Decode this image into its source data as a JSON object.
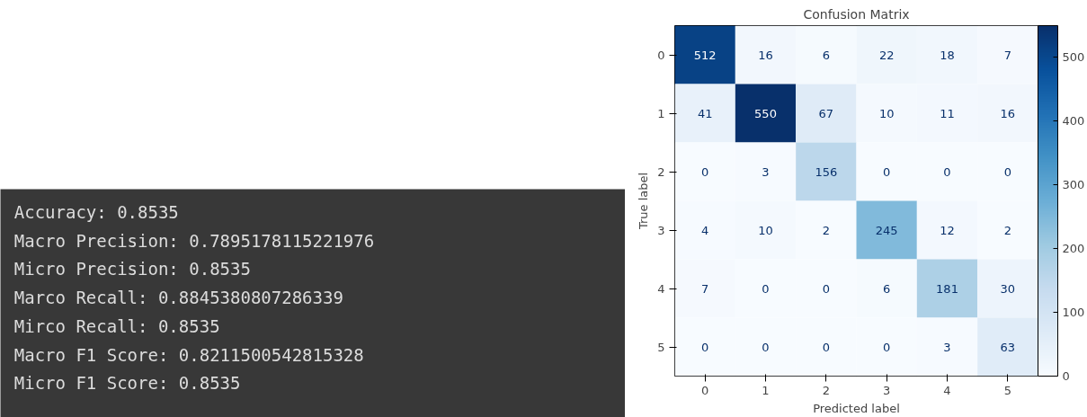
{
  "chart_data": [
    {
      "type": "other",
      "annotations": [
        "Accuracy: 0.8535",
        "Macro Precision: 0.7895178115221976",
        "Micro Precision: 0.8535",
        "Marco Recall: 0.8845380807286339",
        "Mirco Recall: 0.8535",
        "Macro F1 Score: 0.8211500542815328",
        "Micro F1 Score: 0.8535"
      ]
    },
    {
      "type": "heatmap",
      "title": "Confusion Matrix",
      "xlabel": "Predicted label",
      "ylabel": "True label",
      "categories": [
        "0",
        "1",
        "2",
        "3",
        "4",
        "5"
      ],
      "y_categories": [
        "0",
        "1",
        "2",
        "3",
        "4",
        "5"
      ],
      "cells": [
        [
          512,
          16,
          6,
          22,
          18,
          7
        ],
        [
          41,
          550,
          67,
          10,
          11,
          16
        ],
        [
          0,
          3,
          156,
          0,
          0,
          0
        ],
        [
          4,
          10,
          2,
          245,
          12,
          2
        ],
        [
          7,
          0,
          0,
          6,
          181,
          30
        ],
        [
          0,
          0,
          0,
          0,
          3,
          63
        ]
      ],
      "clim": [
        0,
        550
      ],
      "cticks": [
        0,
        100,
        200,
        300,
        400,
        500
      ],
      "data_labels": true
    }
  ]
}
